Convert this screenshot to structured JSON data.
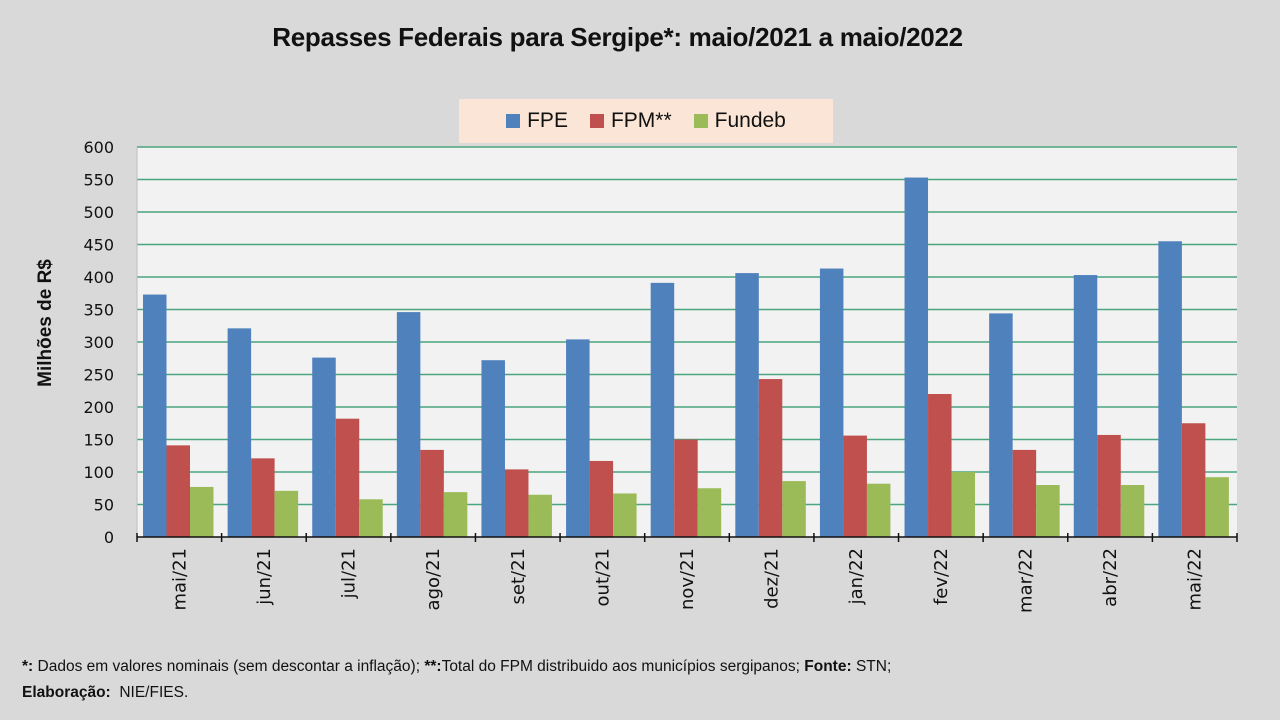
{
  "chart_data": {
    "type": "bar",
    "title": "Repasses Federais para Sergipe*: maio/2021 a maio/2022",
    "xlabel": "",
    "ylabel": "Milhões de R$",
    "ylim": [
      0,
      600
    ],
    "yticks": [
      0,
      50,
      100,
      150,
      200,
      250,
      300,
      350,
      400,
      450,
      500,
      550,
      600
    ],
    "grid": true,
    "legend_position": "top-center",
    "categories": [
      "mai/21",
      "jun/21",
      "jul/21",
      "ago/21",
      "set/21",
      "out/21",
      "nov/21",
      "dez/21",
      "jan/22",
      "fev/22",
      "mar/22",
      "abr/22",
      "mai/22"
    ],
    "series": [
      {
        "name": "FPE",
        "color": "#4f81bd",
        "values": [
          373,
          321,
          276,
          346,
          272,
          304,
          391,
          406,
          413,
          553,
          344,
          403,
          455
        ]
      },
      {
        "name": "FPM**",
        "color": "#c0504d",
        "values": [
          141,
          121,
          182,
          134,
          104,
          117,
          150,
          243,
          156,
          220,
          134,
          157,
          175
        ]
      },
      {
        "name": "Fundeb",
        "color": "#9bbb59",
        "values": [
          77,
          71,
          58,
          69,
          65,
          67,
          75,
          86,
          82,
          100,
          80,
          80,
          92
        ]
      }
    ]
  },
  "footnote": {
    "line1_mark1": "*:",
    "line1_text1": " Dados em valores nominais (sem descontar a inflação); ",
    "line1_mark2": "**:",
    "line1_text2": "Total do FPM distribuido aos municípios sergipanos; ",
    "line1_source_label": "Fonte:",
    "line1_source": " STN;",
    "line2_label": "Elaboração:",
    "line2_text": "  NIE/FIES."
  },
  "colors": {
    "background": "#d9d9d9",
    "plot_background": "#f2f2f2",
    "gridline": "#4aa57e",
    "legend_background": "#fbe5d6"
  }
}
